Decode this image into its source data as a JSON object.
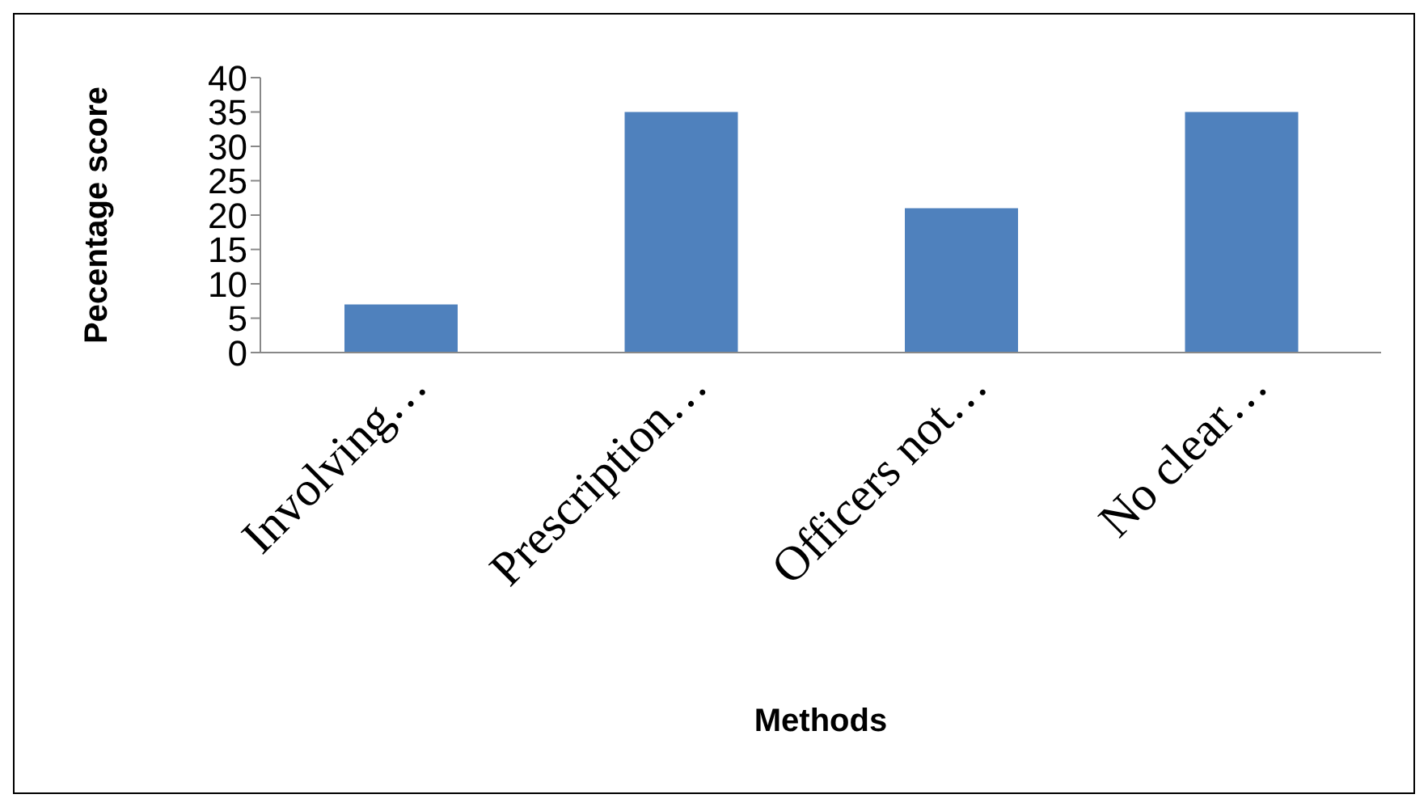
{
  "chart_data": {
    "type": "bar",
    "xlabel": "Methods",
    "ylabel": "Pecentage score",
    "categories": [
      "Involving…",
      "Prescription…",
      "Officers not…",
      "No clear…"
    ],
    "values": [
      7,
      35,
      21,
      35
    ],
    "color": "#4f81bd",
    "ylim": [
      0,
      40
    ],
    "yticks": [
      0,
      5,
      10,
      15,
      20,
      25,
      30,
      35,
      40
    ]
  }
}
